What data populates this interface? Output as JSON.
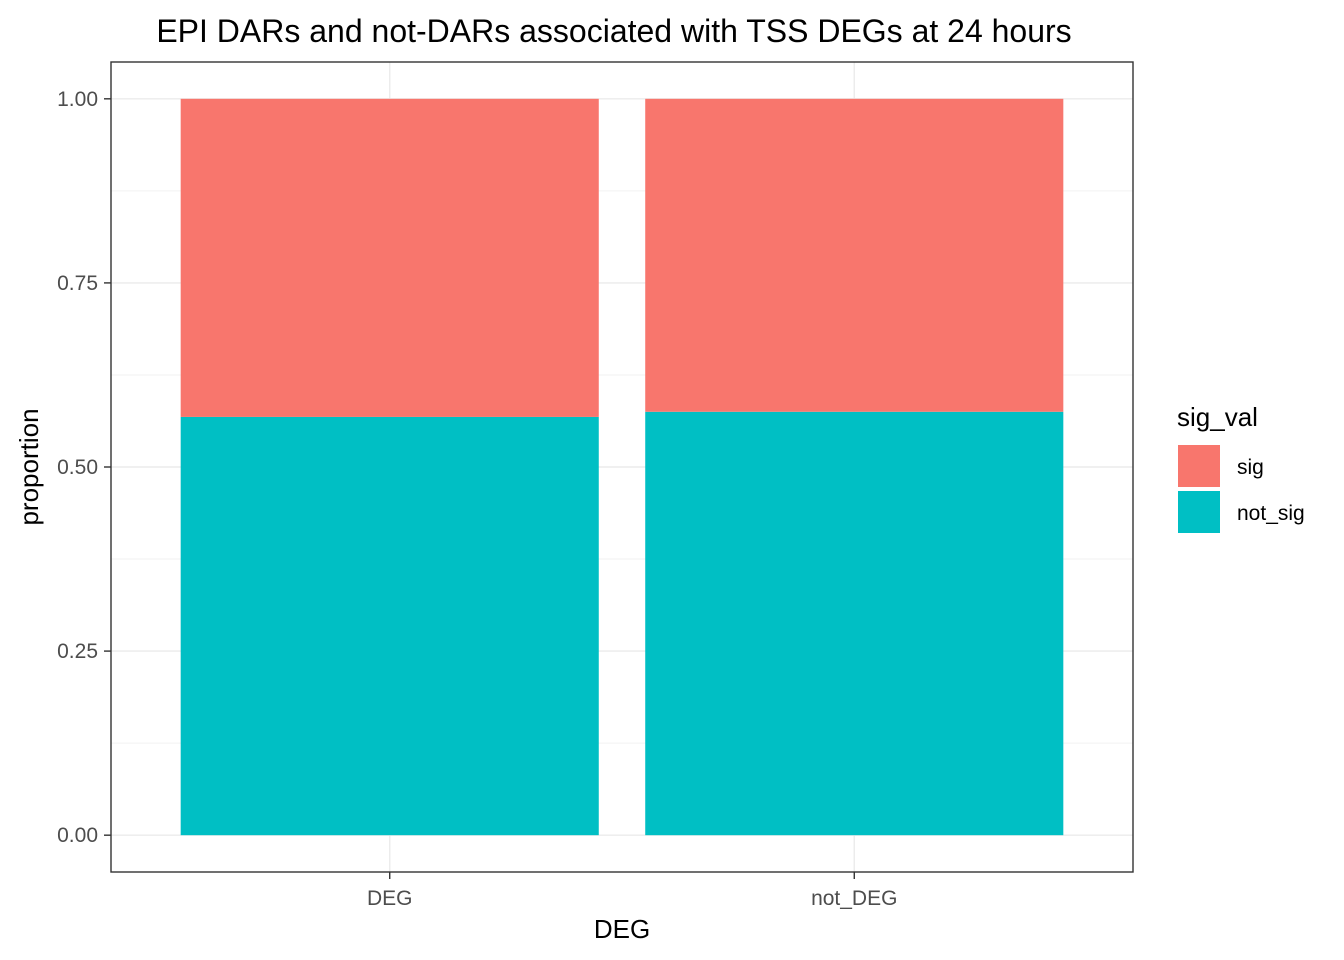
{
  "chart_data": {
    "type": "bar",
    "stacked": true,
    "title": "EPI DARs and not-DARs associated with TSS DEGs at 24 hours",
    "xlabel": "DEG",
    "ylabel": "proportion",
    "categories": [
      "DEG",
      "not_DEG"
    ],
    "series": [
      {
        "name": "not_sig",
        "values": [
          0.568,
          0.575
        ],
        "color": "#00BFC4"
      },
      {
        "name": "sig",
        "values": [
          0.432,
          0.425
        ],
        "color": "#F8766D"
      }
    ],
    "ylim": [
      -0.05,
      1.05
    ],
    "yticks": [
      0.0,
      0.25,
      0.5,
      0.75,
      1.0
    ],
    "ytick_labels": [
      "0.00",
      "0.25",
      "0.50",
      "0.75",
      "1.00"
    ],
    "grid": true,
    "legend": {
      "title": "sig_val",
      "position": "right",
      "entries": [
        {
          "label": "sig",
          "color": "#F8766D"
        },
        {
          "label": "not_sig",
          "color": "#00BFC4"
        }
      ]
    }
  }
}
